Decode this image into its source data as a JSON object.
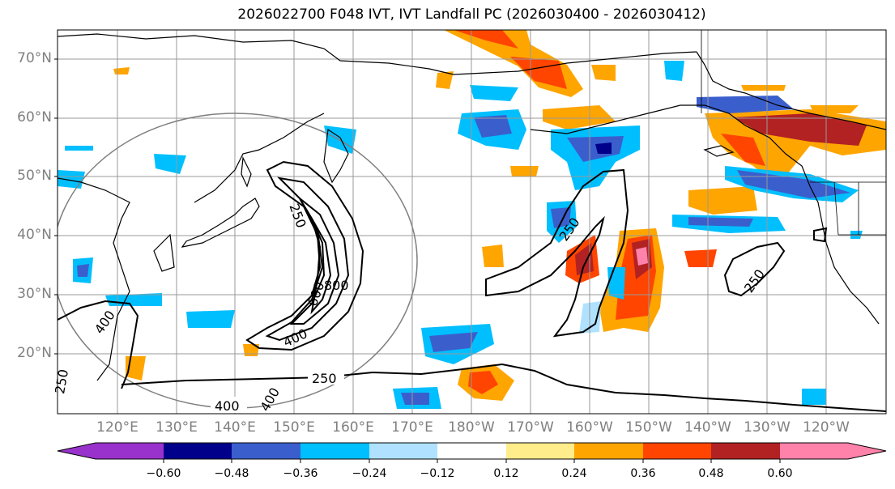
{
  "title": "2026022700 F048 IVT, IVT Landfall PC (2026030400 - 2026030412)",
  "axes": {
    "lat_labels": [
      "20°N",
      "30°N",
      "40°N",
      "50°N",
      "60°N",
      "70°N"
    ],
    "lon_labels": [
      "120°E",
      "130°E",
      "140°E",
      "150°E",
      "160°E",
      "170°E",
      "180°W",
      "170°W",
      "160°W",
      "150°W",
      "140°W",
      "130°W",
      "120°W"
    ]
  },
  "colorbar": {
    "ticks": [
      "−0.60",
      "−0.48",
      "−0.36",
      "−0.24",
      "−0.12",
      "0.12",
      "0.24",
      "0.36",
      "0.48",
      "0.60"
    ],
    "colors": [
      "#9932cc",
      "#00008b",
      "#3a5fcd",
      "#00bfff",
      "#b0e2ff",
      "#ffffff",
      "#ffec8b",
      "#ffa500",
      "#ff4500",
      "#b22222",
      "#ff82ab"
    ]
  },
  "contour_labels": [
    "250",
    "250",
    "250",
    "250",
    "400",
    "400",
    "400",
    "600",
    "800",
    "250",
    "400"
  ]
}
